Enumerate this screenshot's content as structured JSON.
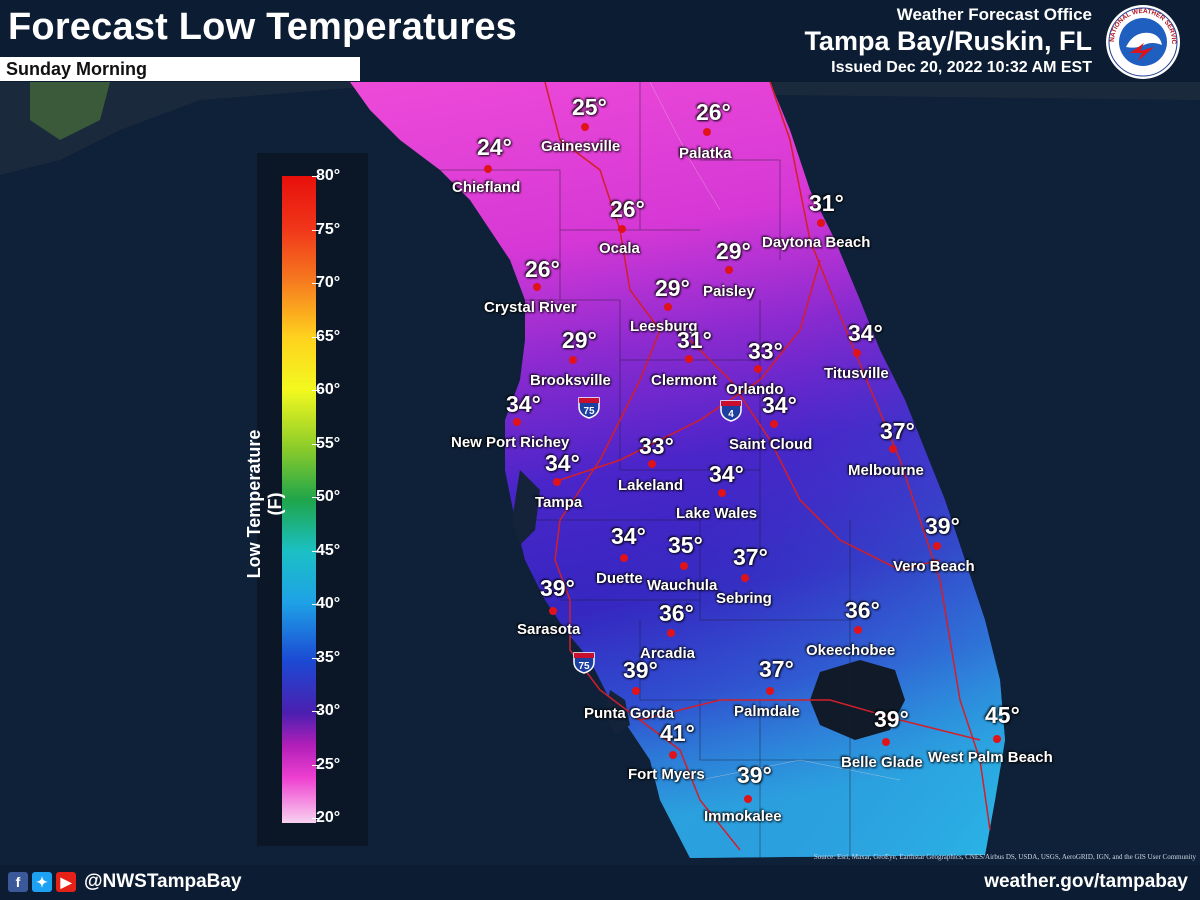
{
  "header": {
    "title": "Forecast Low Temperatures",
    "subtitle": "Sunday Morning",
    "office_line1": "Weather Forecast Office",
    "office_line2": "Tampa Bay/Ruskin, FL",
    "issued": "Issued Dec 20, 2022 10:32 AM EST",
    "logo_text": "NATIONAL WEATHER SERVICE"
  },
  "legend": {
    "label": "Low Temperature (F)",
    "ticks": [
      "80°",
      "75°",
      "70°",
      "65°",
      "60°",
      "55°",
      "50°",
      "45°",
      "40°",
      "35°",
      "30°",
      "25°",
      "20°"
    ]
  },
  "map": {
    "highways": [
      "75",
      "4",
      "75"
    ],
    "cities": [
      {
        "name": "Gainesville",
        "temp": "25°"
      },
      {
        "name": "Palatka",
        "temp": "26°"
      },
      {
        "name": "Chiefland",
        "temp": "24°"
      },
      {
        "name": "Ocala",
        "temp": "26°"
      },
      {
        "name": "Daytona Beach",
        "temp": "31°"
      },
      {
        "name": "Paisley",
        "temp": "29°"
      },
      {
        "name": "Crystal River",
        "temp": "26°"
      },
      {
        "name": "Leesburg",
        "temp": "29°"
      },
      {
        "name": "Brooksville",
        "temp": "29°"
      },
      {
        "name": "Clermont",
        "temp": "31°"
      },
      {
        "name": "Orlando",
        "temp": "33°"
      },
      {
        "name": "Titusville",
        "temp": "34°"
      },
      {
        "name": "New Port Richey",
        "temp": "34°"
      },
      {
        "name": "Saint Cloud",
        "temp": "34°"
      },
      {
        "name": "Melbourne",
        "temp": "37°"
      },
      {
        "name": "Tampa",
        "temp": "34°"
      },
      {
        "name": "Lakeland",
        "temp": "33°"
      },
      {
        "name": "Lake Wales",
        "temp": "34°"
      },
      {
        "name": "Duette",
        "temp": "34°"
      },
      {
        "name": "Wauchula",
        "temp": "35°"
      },
      {
        "name": "Sebring",
        "temp": "37°"
      },
      {
        "name": "Vero Beach",
        "temp": "39°"
      },
      {
        "name": "Sarasota",
        "temp": "39°"
      },
      {
        "name": "Arcadia",
        "temp": "36°"
      },
      {
        "name": "Okeechobee",
        "temp": "36°"
      },
      {
        "name": "Punta Gorda",
        "temp": "39°"
      },
      {
        "name": "Palmdale",
        "temp": "37°"
      },
      {
        "name": "Fort Myers",
        "temp": "41°"
      },
      {
        "name": "Belle Glade",
        "temp": "39°"
      },
      {
        "name": "West Palm Beach",
        "temp": "45°"
      },
      {
        "name": "Immokalee",
        "temp": "39°"
      }
    ],
    "attribution": "Source: Esri, Maxar, GeoEye, Earthstar Geographics, CNES/Airbus DS, USDA, USGS, AeroGRID, IGN, and the GIS User Community"
  },
  "footer": {
    "handle": "@NWSTampaBay",
    "website": "weather.gov/tampabay",
    "social_icons": [
      "facebook-icon",
      "twitter-icon",
      "youtube-icon"
    ]
  },
  "colors": {
    "header_bg": "#0c1d33",
    "ocean": "#0f2138",
    "cold": "#e13fd2",
    "mid": "#5a22c9",
    "warm": "#27c6e0",
    "city_dot": "#e0121a"
  }
}
